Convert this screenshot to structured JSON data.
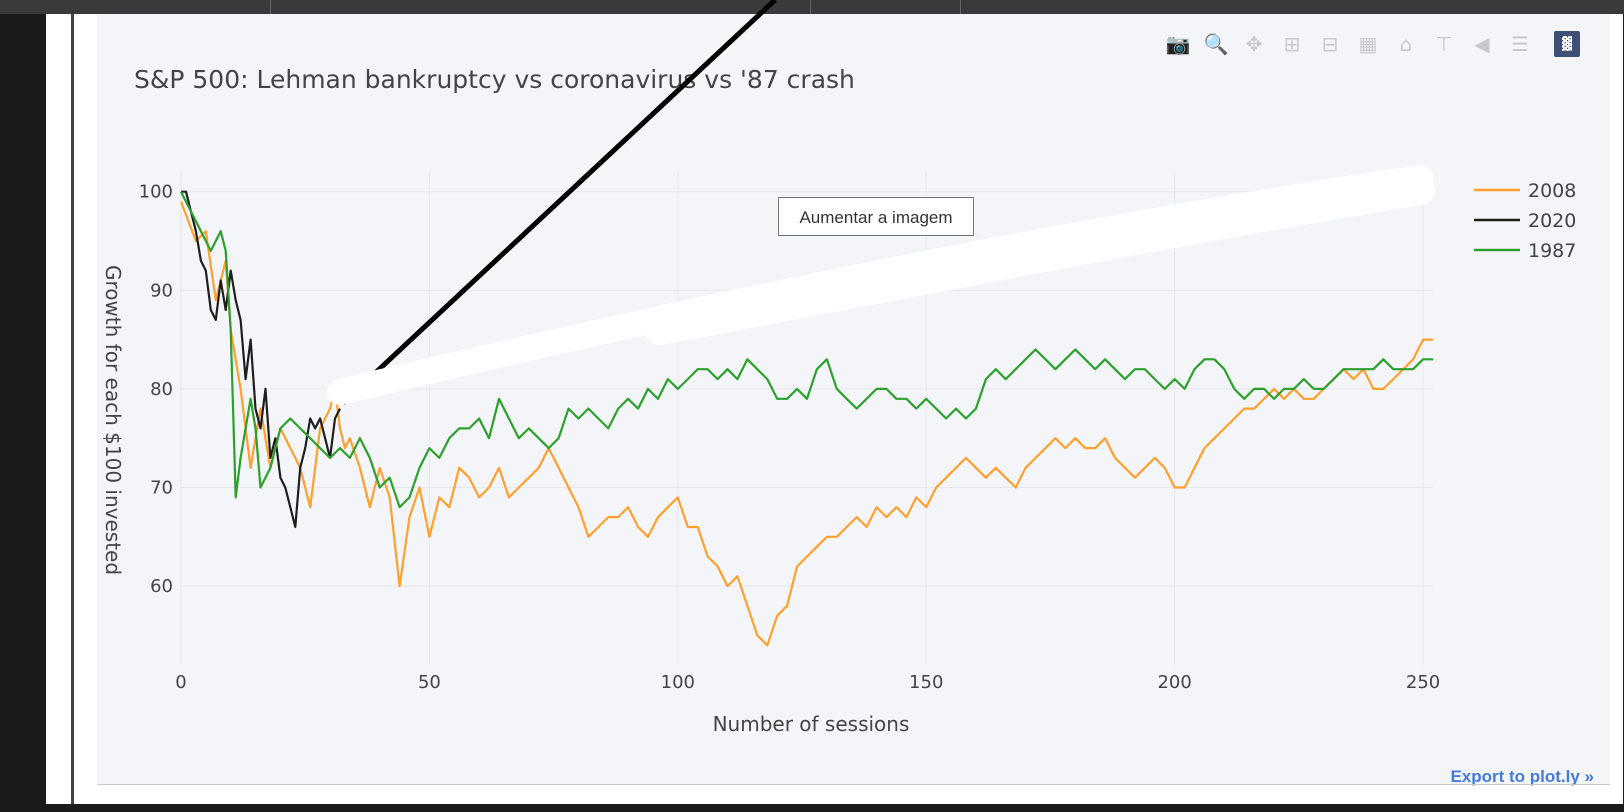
{
  "tooltip": "Aumentar a imagem",
  "export_link": "Export to plot.ly »",
  "modebar": {
    "icons": [
      "camera-icon",
      "zoom-icon",
      "pan-icon",
      "zoom-in-icon",
      "zoom-out-icon",
      "autoscale-icon",
      "home-icon",
      "spike-lines-icon",
      "hover-closest-icon",
      "hover-compare-icon",
      "plotly-logo-icon"
    ]
  },
  "chart_data": {
    "type": "line",
    "title": "S&P 500: Lehman bankruptcy vs coronavirus vs '87 crash",
    "xlabel": "Number of sessions",
    "ylabel": "Growth for each $100 invested",
    "xlim": [
      0,
      252
    ],
    "ylim": [
      52,
      102
    ],
    "xticks": [
      0,
      50,
      100,
      150,
      200,
      250
    ],
    "yticks": [
      60,
      70,
      80,
      90,
      100
    ],
    "grid": true,
    "legend_position": "top-right",
    "series": [
      {
        "name": "2008",
        "color": "#ff9f2e",
        "x": [
          0,
          3,
          5,
          7,
          9,
          10,
          12,
          14,
          16,
          18,
          20,
          22,
          24,
          26,
          28,
          30,
          31,
          32,
          33,
          34,
          36,
          38,
          40,
          42,
          44,
          46,
          48,
          50,
          52,
          54,
          56,
          58,
          60,
          62,
          64,
          66,
          68,
          70,
          72,
          74,
          76,
          78,
          80,
          82,
          84,
          86,
          88,
          90,
          92,
          94,
          96,
          98,
          100,
          102,
          104,
          106,
          108,
          110,
          112,
          114,
          116,
          118,
          120,
          122,
          124,
          126,
          128,
          130,
          132,
          134,
          136,
          138,
          140,
          142,
          144,
          146,
          148,
          150,
          152,
          154,
          156,
          158,
          160,
          162,
          164,
          166,
          168,
          170,
          172,
          174,
          176,
          178,
          180,
          182,
          184,
          186,
          188,
          190,
          192,
          194,
          196,
          198,
          200,
          202,
          204,
          206,
          208,
          210,
          212,
          214,
          216,
          218,
          220,
          222,
          224,
          226,
          228,
          230,
          232,
          234,
          236,
          238,
          240,
          242,
          244,
          246,
          248,
          250,
          252
        ],
        "y": [
          99,
          95,
          96,
          89,
          93,
          86,
          80,
          72,
          78,
          72,
          76,
          74,
          72,
          68,
          76,
          78,
          80,
          76,
          74,
          75,
          72,
          68,
          72,
          69,
          60,
          67,
          70,
          65,
          69,
          68,
          72,
          71,
          69,
          70,
          72,
          69,
          70,
          71,
          72,
          74,
          72,
          70,
          68,
          65,
          66,
          67,
          67,
          68,
          66,
          65,
          67,
          68,
          69,
          66,
          66,
          63,
          62,
          60,
          61,
          58,
          55,
          54,
          57,
          58,
          62,
          63,
          64,
          65,
          65,
          66,
          67,
          66,
          68,
          67,
          68,
          67,
          69,
          68,
          70,
          71,
          72,
          73,
          72,
          71,
          72,
          71,
          70,
          72,
          73,
          74,
          75,
          74,
          75,
          74,
          74,
          75,
          73,
          72,
          71,
          72,
          73,
          72,
          70,
          70,
          72,
          74,
          75,
          76,
          77,
          78,
          78,
          79,
          80,
          79,
          80,
          79,
          79,
          80,
          81,
          82,
          81,
          82,
          80,
          80,
          81,
          82,
          83,
          85,
          85
        ]
      },
      {
        "name": "2020",
        "color": "#1f1f1f",
        "x": [
          0,
          1,
          2,
          3,
          4,
          5,
          6,
          7,
          8,
          9,
          10,
          11,
          12,
          13,
          14,
          15,
          16,
          17,
          18,
          19,
          20,
          21,
          22,
          23,
          24,
          25,
          26,
          27,
          28,
          29,
          30,
          31,
          32
        ],
        "y": [
          100,
          100,
          98,
          96,
          93,
          92,
          88,
          87,
          91,
          88,
          92,
          89,
          87,
          81,
          85,
          78,
          76,
          80,
          73,
          75,
          71,
          70,
          68,
          66,
          72,
          74,
          77,
          76,
          77,
          75,
          73,
          77,
          78
        ]
      },
      {
        "name": "1987",
        "color": "#2ca02c",
        "x": [
          0,
          3,
          6,
          8,
          9,
          10,
          11,
          12,
          14,
          15,
          16,
          18,
          20,
          22,
          24,
          26,
          28,
          30,
          32,
          34,
          36,
          38,
          40,
          42,
          44,
          46,
          48,
          50,
          52,
          54,
          56,
          58,
          60,
          62,
          64,
          66,
          68,
          70,
          72,
          74,
          76,
          78,
          80,
          82,
          84,
          86,
          88,
          90,
          92,
          94,
          96,
          98,
          100,
          102,
          104,
          106,
          108,
          110,
          112,
          114,
          116,
          118,
          120,
          122,
          124,
          126,
          128,
          130,
          132,
          134,
          136,
          138,
          140,
          142,
          144,
          146,
          148,
          150,
          152,
          154,
          156,
          158,
          160,
          162,
          164,
          166,
          168,
          170,
          172,
          174,
          176,
          178,
          180,
          182,
          184,
          186,
          188,
          190,
          192,
          194,
          196,
          198,
          200,
          202,
          204,
          206,
          208,
          210,
          212,
          214,
          216,
          218,
          220,
          222,
          224,
          226,
          228,
          230,
          232,
          234,
          236,
          238,
          240,
          242,
          244,
          246,
          248,
          250,
          252
        ],
        "y": [
          100,
          97,
          94,
          96,
          94,
          86,
          69,
          73,
          79,
          76,
          70,
          72,
          76,
          77,
          76,
          75,
          74,
          73,
          74,
          73,
          75,
          73,
          70,
          71,
          68,
          69,
          72,
          74,
          73,
          75,
          76,
          76,
          77,
          75,
          79,
          77,
          75,
          76,
          75,
          74,
          75,
          78,
          77,
          78,
          77,
          76,
          78,
          79,
          78,
          80,
          79,
          81,
          80,
          81,
          82,
          82,
          81,
          82,
          81,
          83,
          82,
          81,
          79,
          79,
          80,
          79,
          82,
          83,
          80,
          79,
          78,
          79,
          80,
          80,
          79,
          79,
          78,
          79,
          78,
          77,
          78,
          77,
          78,
          81,
          82,
          81,
          82,
          83,
          84,
          83,
          82,
          83,
          84,
          83,
          82,
          83,
          82,
          81,
          82,
          82,
          81,
          80,
          81,
          80,
          82,
          83,
          83,
          82,
          80,
          79,
          80,
          80,
          79,
          80,
          80,
          81,
          80,
          80,
          81,
          82,
          82,
          82,
          82,
          83,
          82,
          82,
          82,
          83,
          83
        ]
      }
    ]
  }
}
